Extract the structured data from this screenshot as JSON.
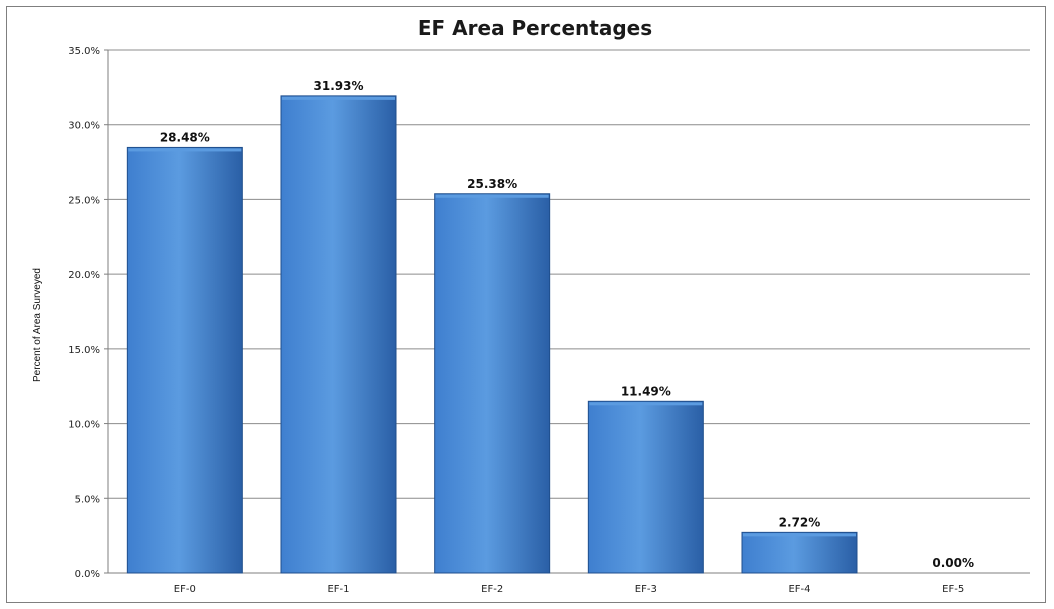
{
  "chart_data": {
    "type": "bar",
    "title": "EF Area Percentages",
    "xlabel": "",
    "ylabel": "Percent of Area Surveyed",
    "categories": [
      "EF-0",
      "EF-1",
      "EF-2",
      "EF-3",
      "EF-4",
      "EF-5"
    ],
    "values": [
      28.48,
      31.93,
      25.38,
      11.49,
      2.72,
      0.0
    ],
    "value_labels": [
      "28.48%",
      "31.93%",
      "25.38%",
      "11.49%",
      "2.72%",
      "0.00%"
    ],
    "ylim": [
      0,
      35
    ],
    "yticks": [
      0,
      5,
      10,
      15,
      20,
      25,
      30,
      35
    ],
    "ytick_labels": [
      "0.0%",
      "5.0%",
      "10.0%",
      "15.0%",
      "20.0%",
      "25.0%",
      "30.0%",
      "35.0%"
    ],
    "grid": true,
    "legend": "none",
    "colors": {
      "bar_light": "#5b9be0",
      "bar_mid": "#3f7fcf",
      "bar_dark": "#2a5fa6",
      "bar_edge": "#1f4e8c",
      "grid": "#8c8c8c",
      "axis": "#7f7f7f"
    }
  }
}
